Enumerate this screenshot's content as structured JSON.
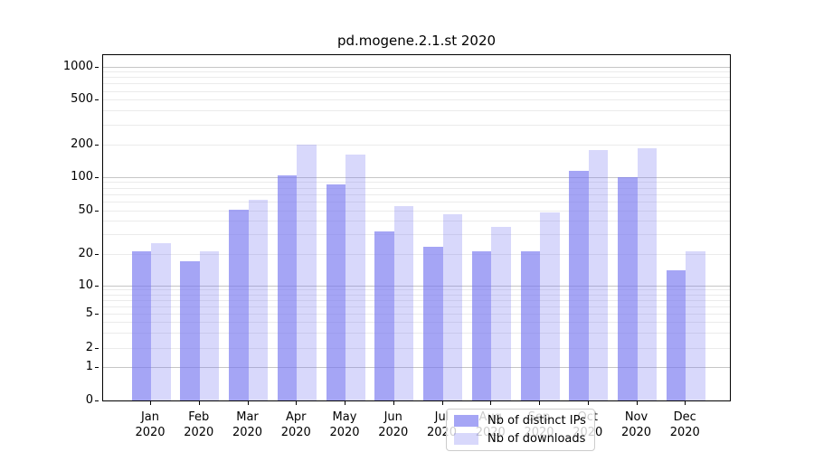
{
  "chart_data": {
    "type": "bar",
    "title": "pd.mogene.2.1.st 2020",
    "categories": [
      "Jan 2020",
      "Feb 2020",
      "Mar 2020",
      "Apr 2020",
      "May 2020",
      "Jun 2020",
      "Jul 2020",
      "Aug 2020",
      "Sep 2020",
      "Oct 2020",
      "Nov 2020",
      "Dec 2020"
    ],
    "series": [
      {
        "name": "Nb of distinct IPs",
        "color": "rgba(116,116,240,0.65)",
        "values": [
          21,
          17,
          51,
          102,
          85,
          32,
          23,
          21,
          21,
          113,
          100,
          14
        ]
      },
      {
        "name": "Nb of downloads",
        "color": "rgba(116,116,240,0.28)",
        "values": [
          25,
          21,
          62,
          197,
          160,
          55,
          46,
          35,
          48,
          178,
          185,
          21
        ]
      }
    ],
    "xlabel": "",
    "ylabel": "",
    "y_axis": {
      "scale": "log-like (symlog)",
      "tick_labels": [
        "0",
        "1",
        "2",
        "5",
        "10",
        "20",
        "50",
        "100",
        "200",
        "500",
        "1000"
      ],
      "major_gridline_values": [
        1,
        10,
        100,
        1000
      ],
      "minor_gridline_values": [
        2,
        3,
        4,
        5,
        6,
        7,
        8,
        9,
        20,
        30,
        40,
        50,
        60,
        70,
        80,
        90,
        200,
        300,
        400,
        500,
        600,
        700,
        800,
        900
      ],
      "range": [
        0,
        1300
      ]
    },
    "grid": "both",
    "legend_position": "lower center",
    "colors": {
      "bar_dark_rendered": "#a5a5f4",
      "bar_light_rendered": "#dcdcfa",
      "grid_major": "#c6c6c6",
      "grid_minor": "#ebebeb",
      "spine": "#000000",
      "legend_border": "#cccccc"
    }
  }
}
